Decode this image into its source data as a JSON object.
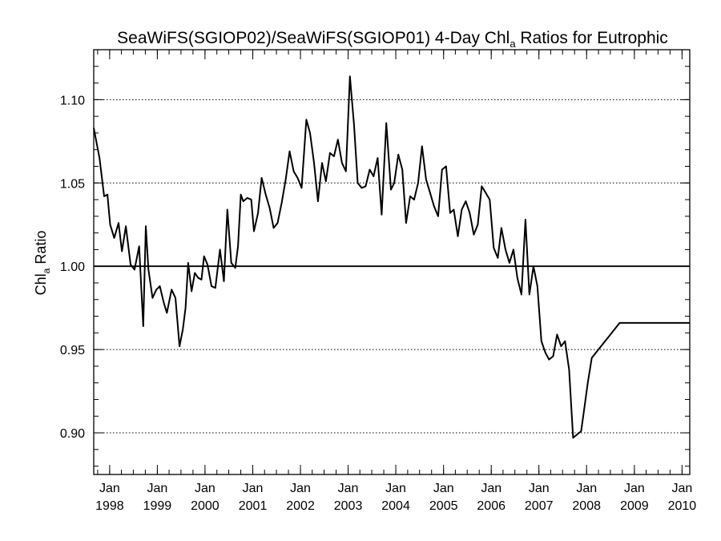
{
  "chart_data": {
    "type": "line",
    "title_main": "SeaWiFS(SGIOP02)/SeaWiFS(SGIOP01) 4-Day Chl",
    "title_sub": "a",
    "title_tail": " Ratios for Eutrophic",
    "ylabel_main": "Chl",
    "ylabel_sub": "a",
    "ylabel_tail": " Ratio",
    "xlabel": "",
    "xlim": [
      "1997-09-01",
      "2010-03-01"
    ],
    "ylim": [
      0.875,
      1.13
    ],
    "y_ticks": [
      {
        "value": 0.9,
        "label": "0.90"
      },
      {
        "value": 0.95,
        "label": "0.95"
      },
      {
        "value": 1.0,
        "label": "1.00"
      },
      {
        "value": 1.05,
        "label": "1.05"
      },
      {
        "value": 1.1,
        "label": "1.10"
      }
    ],
    "x_ticks": [
      {
        "date": "1998-01-01",
        "month": "Jan",
        "year": "1998"
      },
      {
        "date": "1999-01-01",
        "month": "Jan",
        "year": "1999"
      },
      {
        "date": "2000-01-01",
        "month": "Jan",
        "year": "2000"
      },
      {
        "date": "2001-01-01",
        "month": "Jan",
        "year": "2001"
      },
      {
        "date": "2002-01-01",
        "month": "Jan",
        "year": "2002"
      },
      {
        "date": "2003-01-01",
        "month": "Jan",
        "year": "2003"
      },
      {
        "date": "2004-01-01",
        "month": "Jan",
        "year": "2004"
      },
      {
        "date": "2005-01-01",
        "month": "Jan",
        "year": "2005"
      },
      {
        "date": "2006-01-01",
        "month": "Jan",
        "year": "2006"
      },
      {
        "date": "2007-01-01",
        "month": "Jan",
        "year": "2007"
      },
      {
        "date": "2008-01-01",
        "month": "Jan",
        "year": "2008"
      },
      {
        "date": "2009-01-01",
        "month": "Jan",
        "year": "2009"
      },
      {
        "date": "2010-01-01",
        "month": "Jan",
        "year": "2010"
      }
    ],
    "grid_y": "dotted",
    "reference_line": 1.0,
    "series": [
      {
        "x": [
          "1997-09-01",
          "1997-10-15",
          "1997-11-20",
          "1997-12-15",
          "1998-01-05",
          "1998-02-05",
          "1998-03-10",
          "1998-04-05",
          "1998-05-05",
          "1998-06-10",
          "1998-07-10",
          "1998-08-15",
          "1998-09-15",
          "1998-10-05",
          "1998-10-25",
          "1998-11-25",
          "1998-12-25",
          "1999-01-20",
          "1999-02-20",
          "1999-03-15",
          "1999-04-20",
          "1999-05-20",
          "1999-06-20",
          "1999-07-15",
          "1999-08-05",
          "1999-08-25",
          "1999-09-20",
          "1999-10-15",
          "1999-11-10",
          "1999-12-05",
          "1999-12-25",
          "2000-01-20",
          "2000-02-20",
          "2000-03-20",
          "2000-04-25",
          "2000-05-25",
          "2000-06-20",
          "2000-07-20",
          "2000-08-20",
          "2000-09-10",
          "2000-10-01",
          "2000-10-20",
          "2000-11-20",
          "2000-12-20",
          "2001-01-10",
          "2001-02-10",
          "2001-03-10",
          "2001-04-10",
          "2001-05-10",
          "2001-06-10",
          "2001-07-10",
          "2001-08-10",
          "2001-09-10",
          "2001-10-10",
          "2001-11-10",
          "2001-12-10",
          "2002-01-10",
          "2002-02-15",
          "2002-03-15",
          "2002-04-15",
          "2002-05-15",
          "2002-06-15",
          "2002-07-15",
          "2002-08-15",
          "2002-09-15",
          "2002-10-15",
          "2002-11-15",
          "2002-12-15",
          "2003-01-15",
          "2003-02-15",
          "2003-03-15",
          "2003-04-15",
          "2003-05-15",
          "2003-06-15",
          "2003-07-15",
          "2003-08-15",
          "2003-09-15",
          "2003-10-20",
          "2003-11-25",
          "2003-12-20",
          "2004-01-20",
          "2004-02-20",
          "2004-03-20",
          "2004-04-20",
          "2004-05-20",
          "2004-06-20",
          "2004-07-20",
          "2004-08-20",
          "2004-09-20",
          "2004-10-20",
          "2004-11-20",
          "2004-12-20",
          "2005-01-20",
          "2005-02-20",
          "2005-03-20",
          "2005-04-20",
          "2005-05-20",
          "2005-06-20",
          "2005-07-20",
          "2005-08-20",
          "2005-09-20",
          "2005-10-20",
          "2005-11-20",
          "2005-12-20",
          "2006-01-20",
          "2006-02-20",
          "2006-03-20",
          "2006-04-20",
          "2006-05-20",
          "2006-06-20",
          "2006-07-20",
          "2006-08-20",
          "2006-09-20",
          "2006-10-20",
          "2006-11-20",
          "2006-12-20",
          "2007-01-20",
          "2007-02-20",
          "2007-03-20",
          "2007-04-20",
          "2007-05-20",
          "2007-06-20",
          "2007-07-20",
          "2007-08-20",
          "2007-09-20",
          "2007-10-20",
          "2007-11-20",
          "2007-12-10",
          "2008-01-10",
          "2008-02-10",
          "2008-09-10",
          "2008-10-10",
          "2008-11-10",
          "2008-12-10",
          "2009-01-20",
          "2009-02-10",
          "2009-03-10",
          "2009-04-01",
          "2009-05-01",
          "2009-08-01",
          "2009-11-20",
          "2010-01-20",
          "2010-02-10",
          "2010-03-01"
        ],
        "y": [
          1.083,
          1.065,
          1.042,
          1.043,
          1.025,
          1.017,
          1.026,
          1.009,
          1.024,
          1.001,
          0.998,
          1.012,
          0.964,
          1.024,
          0.998,
          0.981,
          0.986,
          0.988,
          0.978,
          0.972,
          0.986,
          0.981,
          0.952,
          0.962,
          0.975,
          1.002,
          0.985,
          0.996,
          0.993,
          0.992,
          1.006,
          1.001,
          0.988,
          0.987,
          1.01,
          0.991,
          1.034,
          1.002,
          0.999,
          1.012,
          1.043,
          1.039,
          1.041,
          1.04,
          1.021,
          1.032,
          1.053,
          1.043,
          1.035,
          1.023,
          1.026,
          1.038,
          1.052,
          1.069,
          1.057,
          1.053,
          1.047,
          1.088,
          1.08,
          1.062,
          1.039,
          1.062,
          1.051,
          1.068,
          1.066,
          1.076,
          1.062,
          1.057,
          1.114,
          1.085,
          1.05,
          1.047,
          1.048,
          1.058,
          1.054,
          1.065,
          1.031,
          1.086,
          1.046,
          1.05,
          1.067,
          1.058,
          1.026,
          1.042,
          1.04,
          1.05,
          1.072,
          1.052,
          1.044,
          1.036,
          1.03,
          1.058,
          1.06,
          1.032,
          1.034,
          1.018,
          1.034,
          1.039,
          1.032,
          1.019,
          1.025,
          1.048,
          1.044,
          1.04,
          1.011,
          1.005,
          1.023,
          1.01,
          1.002,
          1.01,
          0.993,
          0.983,
          1.028,
          0.983,
          1.0,
          0.988,
          0.955,
          0.948,
          0.944,
          0.946,
          0.959,
          0.952,
          0.955,
          0.938,
          0.897,
          0.899,
          0.901,
          0.912,
          0.93,
          0.945,
          0.966,
          0.966,
          0.966,
          0.966,
          0.966,
          0.966,
          0.966,
          0.966,
          0.966,
          0.966,
          0.966,
          0.966,
          0.966,
          0.966
        ]
      }
    ]
  }
}
